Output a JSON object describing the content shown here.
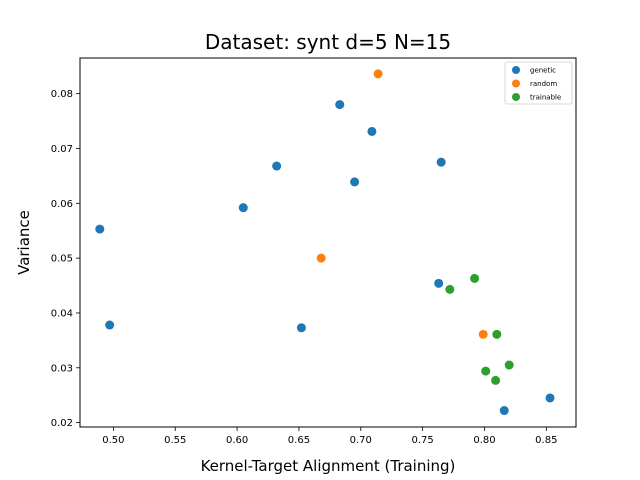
{
  "chart_data": {
    "type": "scatter",
    "title": "Dataset: synt d=5 N=15",
    "xlabel": "Kernel-Target Alignment (Training)",
    "ylabel": "Variance",
    "xlim": [
      0.473,
      0.874
    ],
    "ylim": [
      0.0192,
      0.0865
    ],
    "xticks": [
      0.5,
      0.55,
      0.6,
      0.65,
      0.7,
      0.75,
      0.8,
      0.85
    ],
    "yticks": [
      0.02,
      0.03,
      0.04,
      0.05,
      0.06,
      0.07,
      0.08
    ],
    "grid": false,
    "legend_position": "top-right",
    "series": [
      {
        "name": "genetic",
        "color": "#1f77b4",
        "points": [
          {
            "x": 0.489,
            "y": 0.0553
          },
          {
            "x": 0.497,
            "y": 0.0378
          },
          {
            "x": 0.605,
            "y": 0.0592
          },
          {
            "x": 0.632,
            "y": 0.0668
          },
          {
            "x": 0.652,
            "y": 0.0373
          },
          {
            "x": 0.683,
            "y": 0.078
          },
          {
            "x": 0.695,
            "y": 0.0639
          },
          {
            "x": 0.709,
            "y": 0.0731
          },
          {
            "x": 0.763,
            "y": 0.0454
          },
          {
            "x": 0.765,
            "y": 0.0675
          },
          {
            "x": 0.816,
            "y": 0.0222
          },
          {
            "x": 0.853,
            "y": 0.0245
          }
        ]
      },
      {
        "name": "random",
        "color": "#ff7f0e",
        "points": [
          {
            "x": 0.668,
            "y": 0.05
          },
          {
            "x": 0.714,
            "y": 0.0836
          },
          {
            "x": 0.799,
            "y": 0.0361
          }
        ]
      },
      {
        "name": "trainable",
        "color": "#2ca02c",
        "points": [
          {
            "x": 0.772,
            "y": 0.0443
          },
          {
            "x": 0.792,
            "y": 0.0463
          },
          {
            "x": 0.801,
            "y": 0.0294
          },
          {
            "x": 0.809,
            "y": 0.0277
          },
          {
            "x": 0.81,
            "y": 0.0361
          },
          {
            "x": 0.82,
            "y": 0.0305
          }
        ]
      }
    ]
  }
}
